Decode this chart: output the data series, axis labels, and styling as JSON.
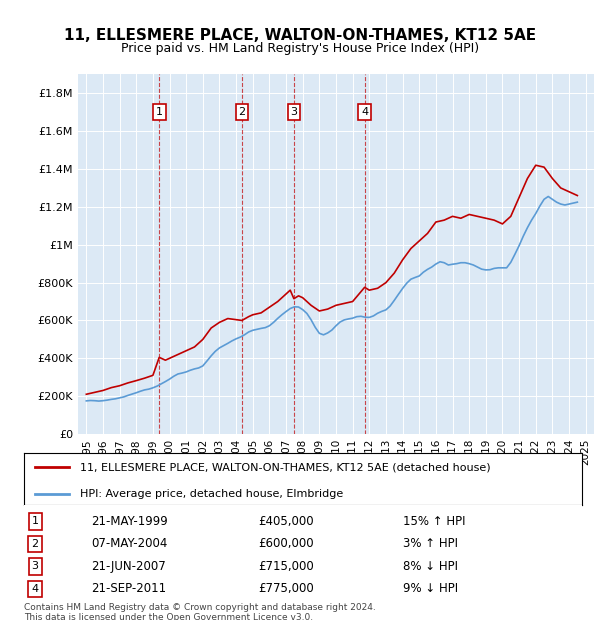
{
  "title": "11, ELLESMERE PLACE, WALTON-ON-THAMES, KT12 5AE",
  "subtitle": "Price paid vs. HM Land Registry's House Price Index (HPI)",
  "footer1": "Contains HM Land Registry data © Crown copyright and database right 2024.",
  "footer2": "This data is licensed under the Open Government Licence v3.0.",
  "legend1": "11, ELLESMERE PLACE, WALTON-ON-THAMES, KT12 5AE (detached house)",
  "legend2": "HPI: Average price, detached house, Elmbridge",
  "hpi_color": "#5b9bd5",
  "price_color": "#c00000",
  "transactions": [
    {
      "label": "1",
      "date": "21-MAY-1999",
      "price": 405000,
      "pct": "15%",
      "dir": "↑",
      "x": 1999.38
    },
    {
      "label": "2",
      "date": "07-MAY-2004",
      "price": 600000,
      "pct": "3%",
      "dir": "↑",
      "x": 2004.35
    },
    {
      "label": "3",
      "date": "21-JUN-2007",
      "price": 715000,
      "pct": "8%",
      "dir": "↓",
      "x": 2007.47
    },
    {
      "label": "4",
      "date": "21-SEP-2011",
      "price": 775000,
      "pct": "9%",
      "dir": "↓",
      "x": 2011.72
    }
  ],
  "ylim": [
    0,
    1900000
  ],
  "yticks": [
    0,
    200000,
    400000,
    600000,
    800000,
    1000000,
    1200000,
    1400000,
    1600000,
    1800000
  ],
  "ytick_labels": [
    "£0",
    "£200K",
    "£400K",
    "£600K",
    "£800K",
    "£1M",
    "£1.2M",
    "£1.4M",
    "£1.6M",
    "£1.8M"
  ],
  "xlim_start": 1994.5,
  "xlim_end": 2025.5,
  "hpi_data": [
    [
      1995.0,
      175000
    ],
    [
      1995.25,
      177000
    ],
    [
      1995.5,
      176000
    ],
    [
      1995.75,
      174000
    ],
    [
      1996.0,
      176000
    ],
    [
      1996.25,
      179000
    ],
    [
      1996.5,
      183000
    ],
    [
      1996.75,
      186000
    ],
    [
      1997.0,
      191000
    ],
    [
      1997.25,
      196000
    ],
    [
      1997.5,
      204000
    ],
    [
      1997.75,
      211000
    ],
    [
      1998.0,
      218000
    ],
    [
      1998.25,
      226000
    ],
    [
      1998.5,
      233000
    ],
    [
      1998.75,
      237000
    ],
    [
      1999.0,
      244000
    ],
    [
      1999.25,
      253000
    ],
    [
      1999.5,
      265000
    ],
    [
      1999.75,
      277000
    ],
    [
      2000.0,
      290000
    ],
    [
      2000.25,
      305000
    ],
    [
      2000.5,
      317000
    ],
    [
      2000.75,
      322000
    ],
    [
      2001.0,
      328000
    ],
    [
      2001.25,
      337000
    ],
    [
      2001.5,
      344000
    ],
    [
      2001.75,
      349000
    ],
    [
      2002.0,
      360000
    ],
    [
      2002.25,
      386000
    ],
    [
      2002.5,
      413000
    ],
    [
      2002.75,
      437000
    ],
    [
      2003.0,
      455000
    ],
    [
      2003.25,
      467000
    ],
    [
      2003.5,
      479000
    ],
    [
      2003.75,
      492000
    ],
    [
      2004.0,
      503000
    ],
    [
      2004.25,
      512000
    ],
    [
      2004.5,
      524000
    ],
    [
      2004.75,
      539000
    ],
    [
      2005.0,
      548000
    ],
    [
      2005.25,
      553000
    ],
    [
      2005.5,
      558000
    ],
    [
      2005.75,
      562000
    ],
    [
      2006.0,
      572000
    ],
    [
      2006.25,
      590000
    ],
    [
      2006.5,
      611000
    ],
    [
      2006.75,
      630000
    ],
    [
      2007.0,
      647000
    ],
    [
      2007.25,
      663000
    ],
    [
      2007.5,
      672000
    ],
    [
      2007.75,
      671000
    ],
    [
      2008.0,
      657000
    ],
    [
      2008.25,
      637000
    ],
    [
      2008.5,
      604000
    ],
    [
      2008.75,
      564000
    ],
    [
      2009.0,
      532000
    ],
    [
      2009.25,
      524000
    ],
    [
      2009.5,
      534000
    ],
    [
      2009.75,
      549000
    ],
    [
      2010.0,
      572000
    ],
    [
      2010.25,
      592000
    ],
    [
      2010.5,
      603000
    ],
    [
      2010.75,
      608000
    ],
    [
      2011.0,
      612000
    ],
    [
      2011.25,
      620000
    ],
    [
      2011.5,
      622000
    ],
    [
      2011.75,
      617000
    ],
    [
      2012.0,
      616000
    ],
    [
      2012.25,
      624000
    ],
    [
      2012.5,
      638000
    ],
    [
      2012.75,
      648000
    ],
    [
      2013.0,
      656000
    ],
    [
      2013.25,
      676000
    ],
    [
      2013.5,
      706000
    ],
    [
      2013.75,
      738000
    ],
    [
      2014.0,
      769000
    ],
    [
      2014.25,
      797000
    ],
    [
      2014.5,
      818000
    ],
    [
      2014.75,
      827000
    ],
    [
      2015.0,
      835000
    ],
    [
      2015.25,
      855000
    ],
    [
      2015.5,
      870000
    ],
    [
      2015.75,
      882000
    ],
    [
      2016.0,
      898000
    ],
    [
      2016.25,
      910000
    ],
    [
      2016.5,
      905000
    ],
    [
      2016.75,
      893000
    ],
    [
      2017.0,
      897000
    ],
    [
      2017.25,
      900000
    ],
    [
      2017.5,
      905000
    ],
    [
      2017.75,
      905000
    ],
    [
      2018.0,
      900000
    ],
    [
      2018.25,
      893000
    ],
    [
      2018.5,
      882000
    ],
    [
      2018.75,
      871000
    ],
    [
      2019.0,
      867000
    ],
    [
      2019.25,
      868000
    ],
    [
      2019.5,
      875000
    ],
    [
      2019.75,
      878000
    ],
    [
      2020.0,
      878000
    ],
    [
      2020.25,
      878000
    ],
    [
      2020.5,
      907000
    ],
    [
      2020.75,
      950000
    ],
    [
      2021.0,
      995000
    ],
    [
      2021.25,
      1045000
    ],
    [
      2021.5,
      1090000
    ],
    [
      2021.75,
      1130000
    ],
    [
      2022.0,
      1165000
    ],
    [
      2022.25,
      1205000
    ],
    [
      2022.5,
      1240000
    ],
    [
      2022.75,
      1255000
    ],
    [
      2023.0,
      1240000
    ],
    [
      2023.25,
      1225000
    ],
    [
      2023.5,
      1215000
    ],
    [
      2023.75,
      1210000
    ],
    [
      2024.0,
      1215000
    ],
    [
      2024.25,
      1220000
    ],
    [
      2024.5,
      1225000
    ]
  ],
  "price_data": [
    [
      1995.0,
      210000
    ],
    [
      1995.5,
      220000
    ],
    [
      1996.0,
      230000
    ],
    [
      1996.5,
      245000
    ],
    [
      1997.0,
      255000
    ],
    [
      1997.5,
      270000
    ],
    [
      1998.0,
      282000
    ],
    [
      1998.5,
      295000
    ],
    [
      1999.0,
      310000
    ],
    [
      1999.38,
      405000
    ],
    [
      1999.75,
      390000
    ],
    [
      2000.0,
      400000
    ],
    [
      2000.5,
      420000
    ],
    [
      2001.0,
      440000
    ],
    [
      2001.5,
      460000
    ],
    [
      2002.0,
      500000
    ],
    [
      2002.5,
      560000
    ],
    [
      2003.0,
      590000
    ],
    [
      2003.5,
      610000
    ],
    [
      2004.35,
      600000
    ],
    [
      2004.75,
      620000
    ],
    [
      2005.0,
      630000
    ],
    [
      2005.5,
      640000
    ],
    [
      2006.0,
      670000
    ],
    [
      2006.5,
      700000
    ],
    [
      2007.0,
      740000
    ],
    [
      2007.25,
      760000
    ],
    [
      2007.47,
      715000
    ],
    [
      2007.75,
      730000
    ],
    [
      2008.0,
      720000
    ],
    [
      2008.5,
      680000
    ],
    [
      2009.0,
      650000
    ],
    [
      2009.5,
      660000
    ],
    [
      2010.0,
      680000
    ],
    [
      2010.5,
      690000
    ],
    [
      2011.0,
      700000
    ],
    [
      2011.72,
      775000
    ],
    [
      2012.0,
      760000
    ],
    [
      2012.5,
      770000
    ],
    [
      2013.0,
      800000
    ],
    [
      2013.5,
      850000
    ],
    [
      2014.0,
      920000
    ],
    [
      2014.5,
      980000
    ],
    [
      2015.0,
      1020000
    ],
    [
      2015.5,
      1060000
    ],
    [
      2016.0,
      1120000
    ],
    [
      2016.5,
      1130000
    ],
    [
      2017.0,
      1150000
    ],
    [
      2017.5,
      1140000
    ],
    [
      2018.0,
      1160000
    ],
    [
      2018.5,
      1150000
    ],
    [
      2019.0,
      1140000
    ],
    [
      2019.5,
      1130000
    ],
    [
      2020.0,
      1110000
    ],
    [
      2020.5,
      1150000
    ],
    [
      2021.0,
      1250000
    ],
    [
      2021.5,
      1350000
    ],
    [
      2022.0,
      1420000
    ],
    [
      2022.5,
      1410000
    ],
    [
      2023.0,
      1350000
    ],
    [
      2023.5,
      1300000
    ],
    [
      2024.0,
      1280000
    ],
    [
      2024.5,
      1260000
    ]
  ]
}
